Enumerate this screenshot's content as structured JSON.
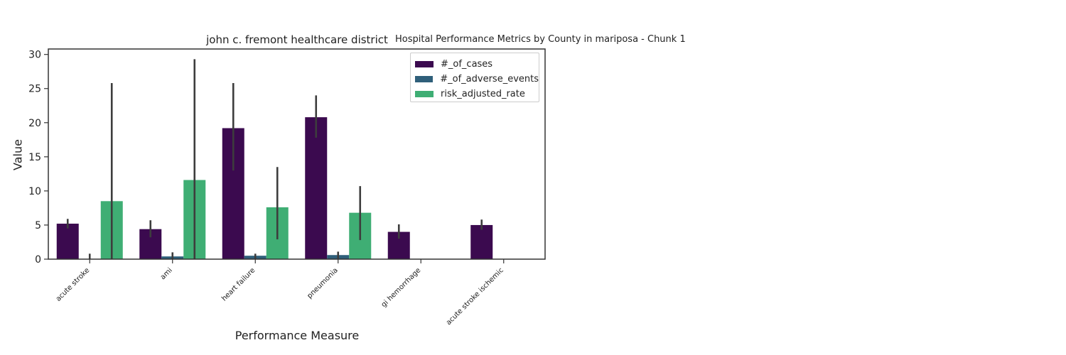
{
  "figure": {
    "suptitle": "Hospital Performance Metrics by County in mariposa - Chunk 1"
  },
  "chart_data": {
    "type": "bar",
    "title": "john c. fremont healthcare district",
    "xlabel": "Performance Measure",
    "ylabel": "Value",
    "ylim": [
      0,
      30.8
    ],
    "yticks": [
      0,
      5,
      10,
      15,
      20,
      25,
      30
    ],
    "grid": false,
    "legend_position": "top-right",
    "categories": [
      "acute stroke",
      "ami",
      "heart failure",
      "pneumonia",
      "gi hemorrhage",
      "acute stroke ischemic"
    ],
    "series": [
      {
        "name": "#_of_cases",
        "color": "#3b0a4f",
        "values": [
          5.2,
          4.4,
          19.2,
          20.8,
          4.0,
          5.0
        ],
        "error_low": [
          4.5,
          3.2,
          13.0,
          17.8,
          3.0,
          4.3
        ],
        "error_high": [
          5.9,
          5.7,
          25.8,
          24.0,
          5.1,
          5.8
        ]
      },
      {
        "name": "#_of_adverse_events",
        "color": "#2f5f7a",
        "values": [
          0.0,
          0.4,
          0.5,
          0.6,
          null,
          null
        ],
        "error_low": [
          0.0,
          0.0,
          0.0,
          0.1,
          null,
          null
        ],
        "error_high": [
          0.8,
          1.0,
          0.8,
          1.1,
          null,
          null
        ]
      },
      {
        "name": "risk_adjusted_rate",
        "color": "#3fae74",
        "values": [
          8.5,
          11.6,
          7.6,
          6.8,
          null,
          null
        ],
        "error_low": [
          0.0,
          0.0,
          2.9,
          2.8,
          null,
          null
        ],
        "error_high": [
          25.8,
          29.3,
          13.5,
          10.7,
          null,
          null
        ]
      }
    ]
  }
}
